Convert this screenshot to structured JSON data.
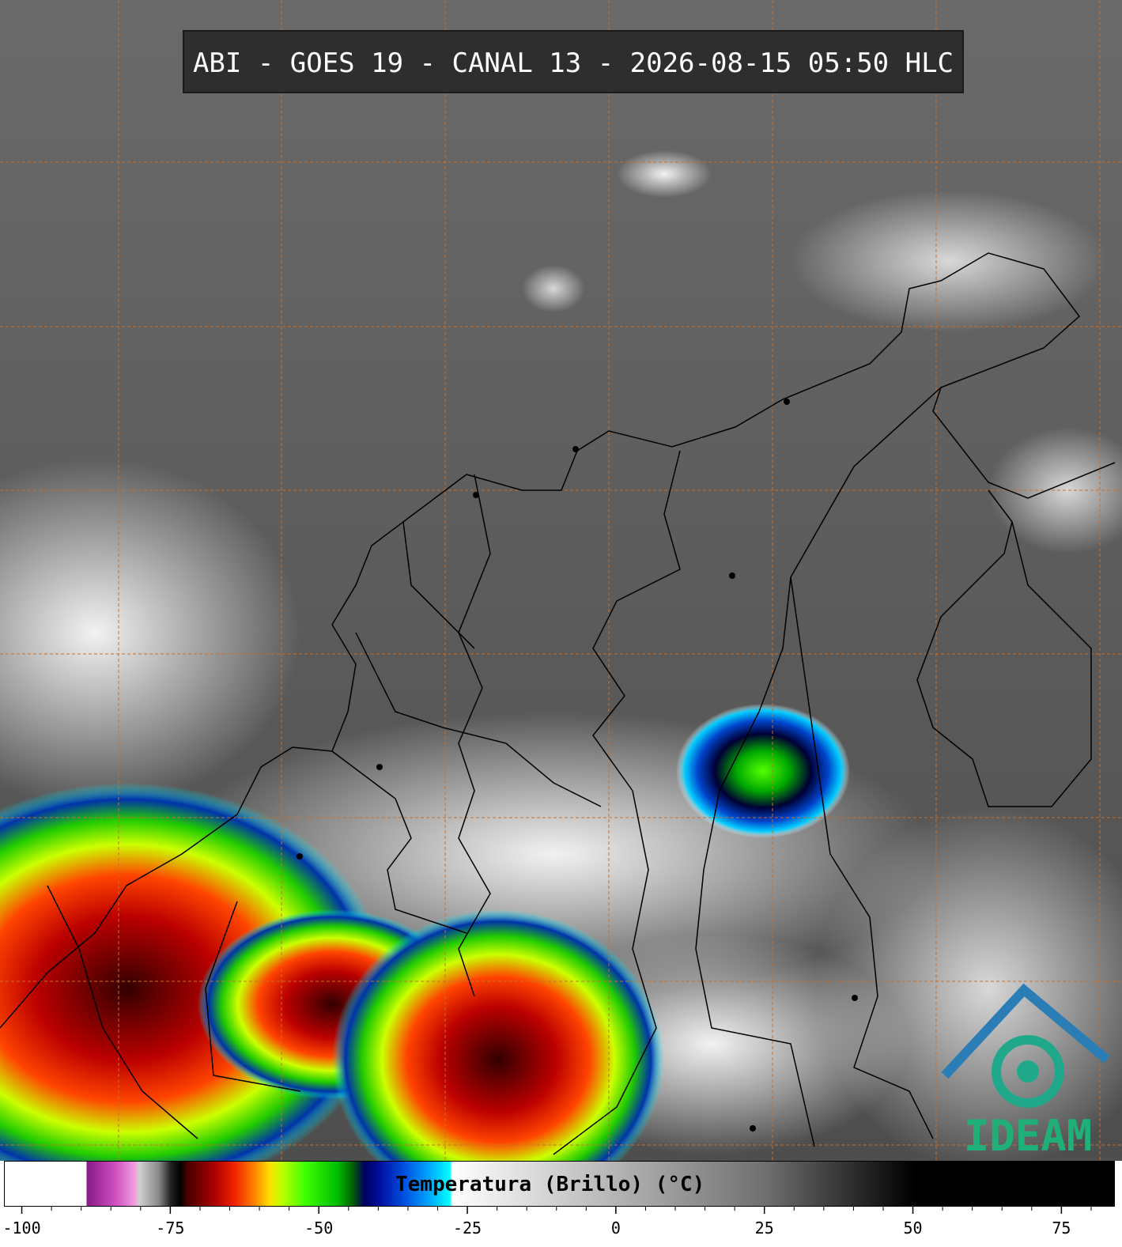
{
  "header": {
    "title": "ABI - GOES 19 - CANAL 13 - 2026-08-15 05:50 HLC"
  },
  "colorbar": {
    "label": "Temperatura (Brillo) (°C)",
    "xlim": [
      -103,
      84
    ],
    "ticks": [
      -100,
      -75,
      -50,
      -25,
      0,
      25,
      50,
      75
    ],
    "minor_ticks": [
      -95,
      -90,
      -85,
      -80,
      -70,
      -65,
      -60,
      -55,
      -45,
      -40,
      -35,
      -30,
      -20,
      -15,
      -10,
      -5,
      5,
      10,
      15,
      20,
      30,
      35,
      40,
      45,
      55,
      60,
      65,
      70,
      80
    ]
  },
  "logo": {
    "text": "IDEAM"
  }
}
